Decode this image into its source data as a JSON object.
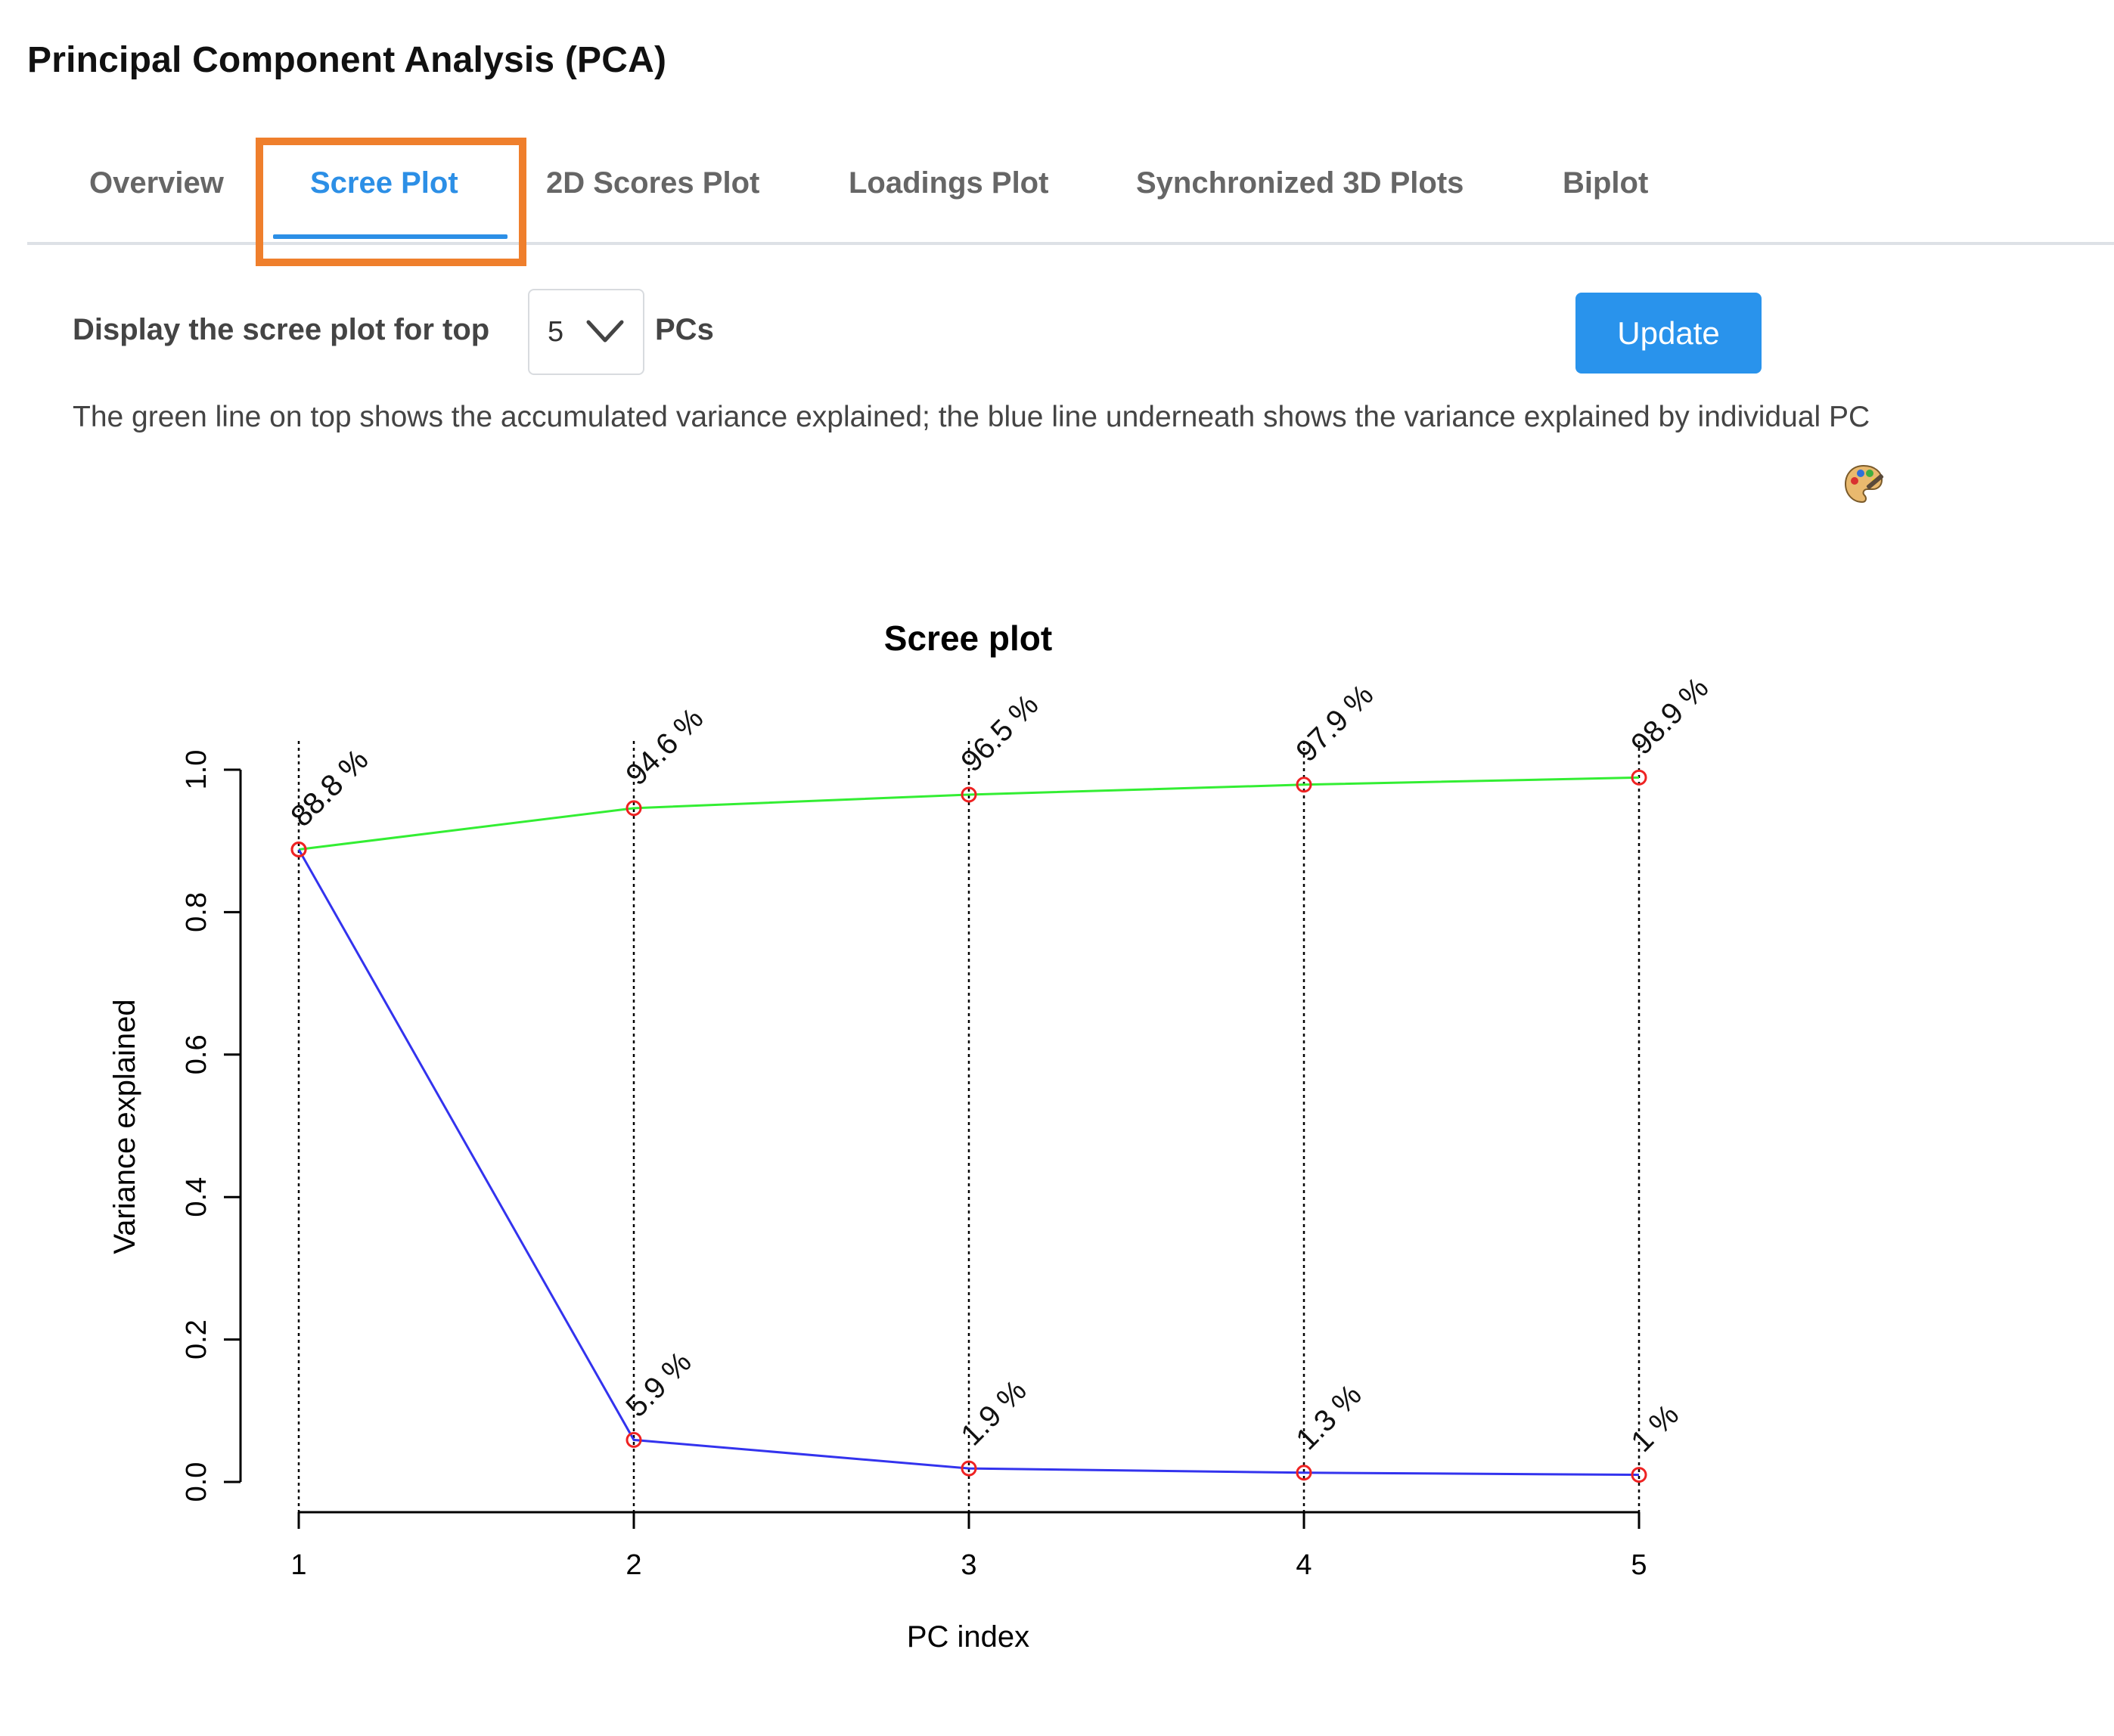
{
  "page": {
    "title": "Principal Component Analysis (PCA)"
  },
  "tabs": [
    {
      "label": "Overview",
      "active": false
    },
    {
      "label": "Scree Plot",
      "active": true
    },
    {
      "label": "2D Scores Plot",
      "active": false
    },
    {
      "label": "Loadings Plot",
      "active": false
    },
    {
      "label": "Synchronized 3D Plots",
      "active": false
    },
    {
      "label": "Biplot",
      "active": false
    }
  ],
  "controls": {
    "display_label": "Display the scree plot for top",
    "select_value": "5",
    "pcs_label": "PCs",
    "update_label": "Update"
  },
  "description": "The green line on top shows the accumulated variance explained; the blue line underneath shows the variance explained by individual PC",
  "icons": {
    "palette": "palette-icon",
    "dropdown": "chevron-down-icon"
  },
  "colors": {
    "accent": "#2c8fe6",
    "highlight": "#ef7f2c",
    "cumulative_line": "#33ee33",
    "individual_line": "#3333ee",
    "points": "#ee2222"
  },
  "chart_data": {
    "type": "line",
    "title": "Scree plot",
    "xlabel": "PC index",
    "ylabel": "Variance explained",
    "x": [
      1,
      2,
      3,
      4,
      5
    ],
    "x_tick_labels": [
      "1",
      "2",
      "3",
      "4",
      "5"
    ],
    "ylim": [
      0,
      1
    ],
    "y_tick_labels": [
      "0.0",
      "0.2",
      "0.4",
      "0.6",
      "0.8",
      "1.0"
    ],
    "grid": false,
    "series": [
      {
        "values": [
          0.888,
          0.946,
          0.965,
          0.979,
          0.989
        ],
        "labels": [
          "88.8 %",
          "94.6 %",
          "96.5 %",
          "97.9 %",
          "98.9 %"
        ],
        "color": "#33ee33"
      },
      {
        "values": [
          0.888,
          0.059,
          0.019,
          0.013,
          0.01
        ],
        "labels": [
          "88.8 %",
          "5.9 %",
          "1.9 %",
          "1.3 %",
          "1 %"
        ],
        "color": "#3333ee"
      }
    ]
  }
}
